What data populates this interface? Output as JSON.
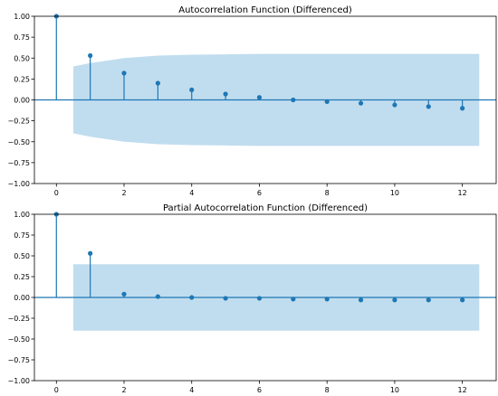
{
  "chart_data": [
    {
      "type": "stem",
      "title": "Autocorrelation Function (Differenced)",
      "x": [
        0,
        1,
        2,
        3,
        4,
        5,
        6,
        7,
        8,
        9,
        10,
        11,
        12
      ],
      "values": [
        1.0,
        0.53,
        0.32,
        0.2,
        0.12,
        0.07,
        0.03,
        0.0,
        -0.02,
        -0.04,
        -0.06,
        -0.08,
        -0.1
      ],
      "confidence_band": {
        "x": [
          0.5,
          1,
          2,
          3,
          4,
          5,
          6,
          7,
          8,
          9,
          10,
          11,
          12,
          12.5
        ],
        "upper": [
          0.4,
          0.44,
          0.5,
          0.53,
          0.54,
          0.545,
          0.55,
          0.55,
          0.55,
          0.55,
          0.55,
          0.55,
          0.55,
          0.55
        ]
      },
      "xlim": [
        -0.65,
        13.0
      ],
      "ylim": [
        -1.0,
        1.0
      ],
      "xticks": [
        0,
        2,
        4,
        6,
        8,
        10,
        12
      ],
      "xtick_labels": [
        "0",
        "2",
        "4",
        "6",
        "8",
        "10",
        "12"
      ],
      "yticks": [
        1.0,
        0.75,
        0.5,
        0.25,
        0.0,
        -0.25,
        -0.5,
        -0.75,
        -1.0
      ],
      "ytick_labels": [
        "1.00",
        "0.75",
        "0.50",
        "0.25",
        "0.00",
        "−0.25",
        "−0.50",
        "−0.75",
        "−1.00"
      ],
      "grid": false,
      "colors": {
        "stem": "#1f77b4",
        "band": "#c0ddef",
        "zero_line": "#1f77b4"
      }
    },
    {
      "type": "stem",
      "title": "Partial Autocorrelation Function (Differenced)",
      "x": [
        0,
        1,
        2,
        3,
        4,
        5,
        6,
        7,
        8,
        9,
        10,
        11,
        12
      ],
      "values": [
        1.0,
        0.53,
        0.04,
        0.01,
        0.0,
        -0.01,
        -0.01,
        -0.02,
        -0.02,
        -0.03,
        -0.03,
        -0.03,
        -0.03
      ],
      "confidence_band": {
        "x": [
          0.5,
          12.5
        ],
        "upper": [
          0.4,
          0.4
        ]
      },
      "xlim": [
        -0.65,
        13.0
      ],
      "ylim": [
        -1.0,
        1.0
      ],
      "xticks": [
        0,
        2,
        4,
        6,
        8,
        10,
        12
      ],
      "xtick_labels": [
        "0",
        "2",
        "4",
        "6",
        "8",
        "10",
        "12"
      ],
      "yticks": [
        1.0,
        0.75,
        0.5,
        0.25,
        0.0,
        -0.25,
        -0.5,
        -0.75,
        -1.0
      ],
      "ytick_labels": [
        "1.00",
        "0.75",
        "0.50",
        "0.25",
        "0.00",
        "−0.25",
        "−0.50",
        "−0.75",
        "−1.00"
      ],
      "grid": false,
      "colors": {
        "stem": "#1f77b4",
        "band": "#c0ddef",
        "zero_line": "#1f77b4"
      }
    }
  ]
}
